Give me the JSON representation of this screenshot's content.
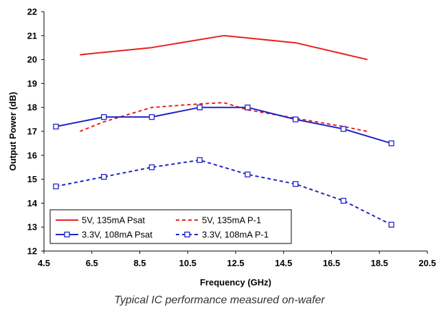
{
  "caption": "Typical IC performance measured on-wafer",
  "chart_data": {
    "type": "line",
    "title": "",
    "xlabel": "Frequency (GHz)",
    "ylabel": "Output Power (dB)",
    "xlim": [
      4.5,
      20.5
    ],
    "ylim": [
      12,
      22
    ],
    "xticks": [
      4.5,
      6.5,
      8.5,
      10.5,
      12.5,
      14.5,
      16.5,
      18.5,
      20.5
    ],
    "xtick_labels": [
      "4.5",
      "6.5",
      "8.5",
      "10.5",
      "12.5",
      "14.5",
      "16.5",
      "18.5",
      "20.5"
    ],
    "yticks": [
      12,
      13,
      14,
      15,
      16,
      17,
      18,
      19,
      20,
      21,
      22
    ],
    "ytick_labels": [
      "12",
      "13",
      "14",
      "15",
      "16",
      "17",
      "18",
      "19",
      "20",
      "21",
      "22"
    ],
    "grid": false,
    "legend_position": "bottom-left",
    "series": [
      {
        "name": "5V, 135mA Psat",
        "color": "#e8201a",
        "style": "solid",
        "marker": "none",
        "x": [
          6,
          9,
          12,
          15,
          18
        ],
        "y": [
          20.2,
          20.5,
          21.0,
          20.7,
          20.0
        ]
      },
      {
        "name": "5V, 135mA P-1",
        "color": "#e8201a",
        "style": "dashed",
        "marker": "none",
        "x": [
          6,
          7,
          9,
          11,
          12,
          13,
          15,
          17,
          18
        ],
        "y": [
          17.0,
          17.4,
          18.0,
          18.15,
          18.2,
          17.9,
          17.55,
          17.2,
          17.0
        ]
      },
      {
        "name": "3.3V, 108mA Psat",
        "color": "#1e22c8",
        "style": "solid",
        "marker": "square",
        "x": [
          5,
          7,
          9,
          11,
          13,
          15,
          17,
          19
        ],
        "y": [
          17.2,
          17.6,
          17.6,
          18.0,
          18.0,
          17.5,
          17.1,
          16.5
        ]
      },
      {
        "name": "3.3V, 108mA P-1",
        "color": "#1e22c8",
        "style": "dashed",
        "marker": "square",
        "x": [
          5,
          7,
          9,
          11,
          13,
          15,
          17,
          19
        ],
        "y": [
          14.7,
          15.1,
          15.5,
          15.8,
          15.2,
          14.8,
          14.1,
          13.1
        ]
      }
    ]
  }
}
